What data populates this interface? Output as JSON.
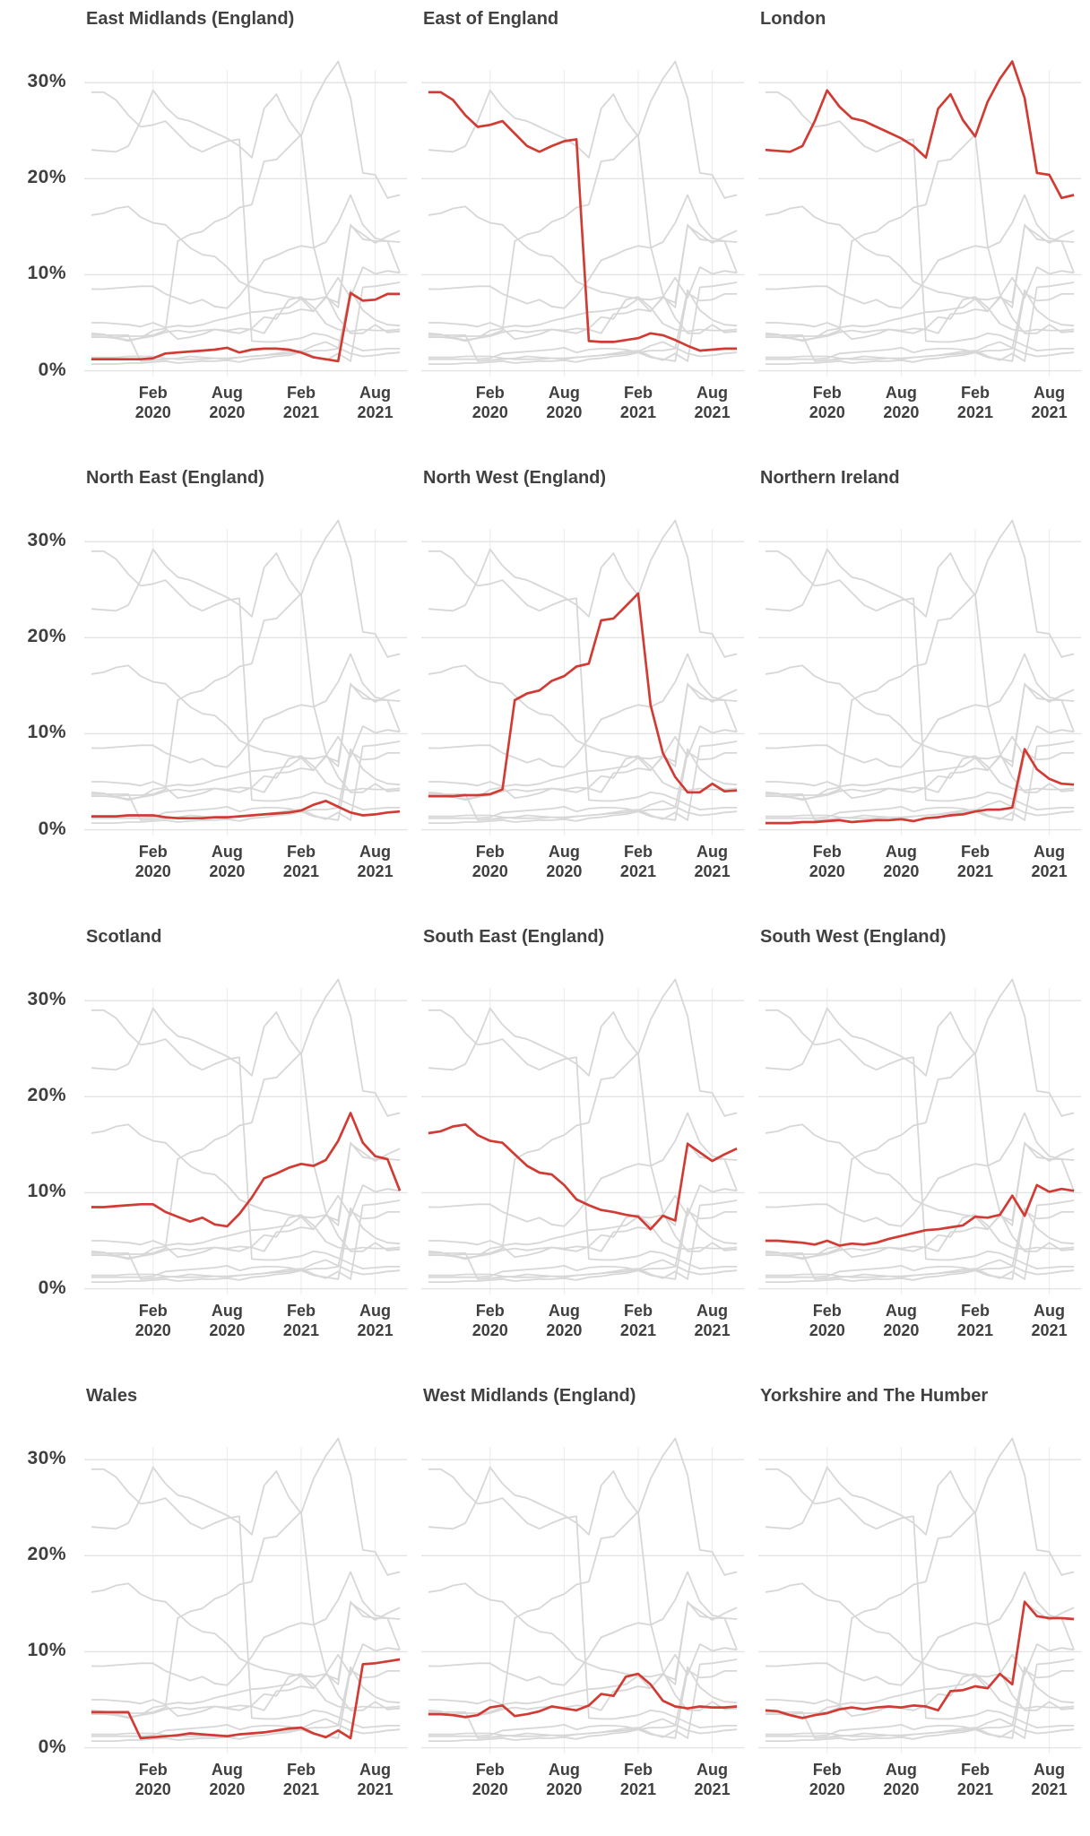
{
  "page": {
    "background": "#ffffff"
  },
  "colors": {
    "highlight": "#d13b34",
    "muted_series": "#d7d7d7",
    "grid": "#e3e3e3",
    "grid_vertical": "#ececec",
    "title_text": "#414141",
    "axis_text": "#3f3f3f"
  },
  "chart_data": {
    "type": "line",
    "layout": {
      "rows": 4,
      "cols": 3,
      "small_multiples": true,
      "legend": "none",
      "grid": "on",
      "highlight_per_panel": true
    },
    "x": [
      "2019-09",
      "2019-10",
      "2019-11",
      "2019-12",
      "2020-01",
      "2020-02",
      "2020-03",
      "2020-04",
      "2020-05",
      "2020-06",
      "2020-07",
      "2020-08",
      "2020-09",
      "2020-10",
      "2020-11",
      "2020-12",
      "2021-01",
      "2021-02",
      "2021-03",
      "2021-04",
      "2021-05",
      "2021-06",
      "2021-07",
      "2021-08",
      "2021-09",
      "2021-10"
    ],
    "x_tick_indices": [
      5,
      11,
      17,
      23
    ],
    "x_tick_labels": [
      [
        "Feb",
        "2020"
      ],
      [
        "Aug",
        "2020"
      ],
      [
        "Feb",
        "2021"
      ],
      [
        "Aug",
        "2021"
      ]
    ],
    "y_tick_values": [
      0,
      10,
      20,
      30
    ],
    "y_tick_labels": [
      "0%",
      "10%",
      "20%",
      "30%"
    ],
    "ylim": [
      -0.6,
      34.5
    ],
    "unit": "%",
    "panels": [
      {
        "slug": "east-midlands",
        "title": "East Midlands (England)"
      },
      {
        "slug": "east-of-england",
        "title": "East of England"
      },
      {
        "slug": "london",
        "title": "London"
      },
      {
        "slug": "north-east",
        "title": "North East (England)"
      },
      {
        "slug": "north-west",
        "title": "North West (England)"
      },
      {
        "slug": "northern-ireland",
        "title": "Northern Ireland"
      },
      {
        "slug": "scotland",
        "title": "Scotland"
      },
      {
        "slug": "south-east",
        "title": "South East (England)"
      },
      {
        "slug": "south-west",
        "title": "South West (England)"
      },
      {
        "slug": "wales",
        "title": "Wales"
      },
      {
        "slug": "west-midlands",
        "title": "West Midlands  (England)"
      },
      {
        "slug": "yorkshire-humber",
        "title": "Yorkshire and The Humber"
      }
    ],
    "series": [
      {
        "name": "East Midlands (England)",
        "values": [
          1.2,
          1.2,
          1.2,
          1.2,
          1.2,
          1.3,
          1.8,
          1.9,
          2.0,
          2.1,
          2.2,
          2.4,
          1.9,
          2.2,
          2.3,
          2.3,
          2.2,
          1.9,
          1.4,
          1.2,
          1.0,
          8.1,
          7.3,
          7.4,
          8.0,
          8.0
        ]
      },
      {
        "name": "East of England",
        "values": [
          29.0,
          29.0,
          28.2,
          26.6,
          25.4,
          25.6,
          26.0,
          24.7,
          23.4,
          22.8,
          23.4,
          23.9,
          24.1,
          3.1,
          3.0,
          3.0,
          3.2,
          3.4,
          3.9,
          3.7,
          3.2,
          2.6,
          2.1,
          2.2,
          2.3,
          2.3
        ]
      },
      {
        "name": "London",
        "values": [
          23.0,
          22.9,
          22.8,
          23.4,
          26.0,
          29.2,
          27.5,
          26.3,
          26.0,
          25.4,
          24.8,
          24.2,
          23.4,
          22.2,
          27.3,
          28.8,
          26.1,
          24.4,
          28.0,
          30.4,
          32.2,
          28.4,
          20.6,
          20.4,
          18.0,
          18.3
        ]
      },
      {
        "name": "North East (England)",
        "values": [
          1.4,
          1.4,
          1.4,
          1.5,
          1.5,
          1.5,
          1.3,
          1.2,
          1.2,
          1.2,
          1.3,
          1.3,
          1.4,
          1.5,
          1.6,
          1.7,
          1.8,
          2.0,
          2.6,
          3.0,
          2.4,
          1.8,
          1.5,
          1.6,
          1.8,
          1.9
        ]
      },
      {
        "name": "North West (England)",
        "values": [
          3.5,
          3.5,
          3.5,
          3.6,
          3.6,
          3.7,
          4.2,
          13.5,
          14.2,
          14.5,
          15.5,
          16.0,
          17.0,
          17.3,
          21.8,
          22.0,
          23.3,
          24.6,
          13.0,
          8.0,
          5.5,
          3.9,
          3.9,
          4.8,
          4.0,
          4.1
        ]
      },
      {
        "name": "Northern Ireland",
        "values": [
          0.7,
          0.7,
          0.7,
          0.8,
          0.8,
          0.9,
          1.0,
          0.8,
          0.9,
          1.0,
          1.0,
          1.1,
          0.9,
          1.2,
          1.3,
          1.5,
          1.6,
          1.9,
          2.1,
          2.1,
          2.3,
          8.4,
          6.3,
          5.3,
          4.8,
          4.7
        ]
      },
      {
        "name": "Scotland",
        "values": [
          8.5,
          8.5,
          8.6,
          8.7,
          8.8,
          8.8,
          8.0,
          7.5,
          7.0,
          7.4,
          6.7,
          6.5,
          7.8,
          9.5,
          11.5,
          12.0,
          12.6,
          13.0,
          12.8,
          13.4,
          15.4,
          18.3,
          15.2,
          13.8,
          13.5,
          10.2
        ]
      },
      {
        "name": "South East (England)",
        "values": [
          16.2,
          16.4,
          16.9,
          17.1,
          16.0,
          15.4,
          15.2,
          14.0,
          12.8,
          12.1,
          11.9,
          10.8,
          9.3,
          8.7,
          8.2,
          8.0,
          7.7,
          7.5,
          6.2,
          7.6,
          7.1,
          15.1,
          14.2,
          13.3,
          14.0,
          14.6
        ]
      },
      {
        "name": "South West (England)",
        "values": [
          5.0,
          5.0,
          4.9,
          4.8,
          4.6,
          5.0,
          4.5,
          4.7,
          4.6,
          4.8,
          5.2,
          5.5,
          5.8,
          6.1,
          6.2,
          6.4,
          6.6,
          7.5,
          7.4,
          7.7,
          9.7,
          7.6,
          10.8,
          10.1,
          10.4,
          10.2
        ]
      },
      {
        "name": "Wales",
        "values": [
          3.7,
          3.7,
          3.7,
          3.7,
          1.0,
          1.1,
          1.2,
          1.3,
          1.5,
          1.4,
          1.3,
          1.2,
          1.4,
          1.5,
          1.6,
          1.8,
          2.0,
          2.1,
          1.5,
          1.1,
          1.8,
          1.0,
          8.7,
          8.8,
          9.0,
          9.2
        ]
      },
      {
        "name": "West Midlands (England)",
        "values": [
          3.5,
          3.5,
          3.4,
          3.2,
          3.4,
          4.2,
          4.4,
          3.3,
          3.5,
          3.8,
          4.3,
          4.1,
          3.9,
          4.4,
          5.6,
          5.4,
          7.4,
          7.7,
          6.6,
          4.9,
          4.3,
          4.1,
          4.3,
          4.2,
          4.2,
          4.3
        ]
      },
      {
        "name": "Yorkshire and The Humber",
        "values": [
          3.9,
          3.8,
          3.4,
          3.1,
          3.4,
          3.6,
          4.0,
          4.2,
          4.0,
          4.2,
          4.3,
          4.2,
          4.4,
          4.3,
          3.9,
          5.9,
          6.0,
          6.4,
          6.2,
          7.7,
          6.6,
          15.2,
          13.7,
          13.5,
          13.5,
          13.4
        ]
      }
    ]
  }
}
